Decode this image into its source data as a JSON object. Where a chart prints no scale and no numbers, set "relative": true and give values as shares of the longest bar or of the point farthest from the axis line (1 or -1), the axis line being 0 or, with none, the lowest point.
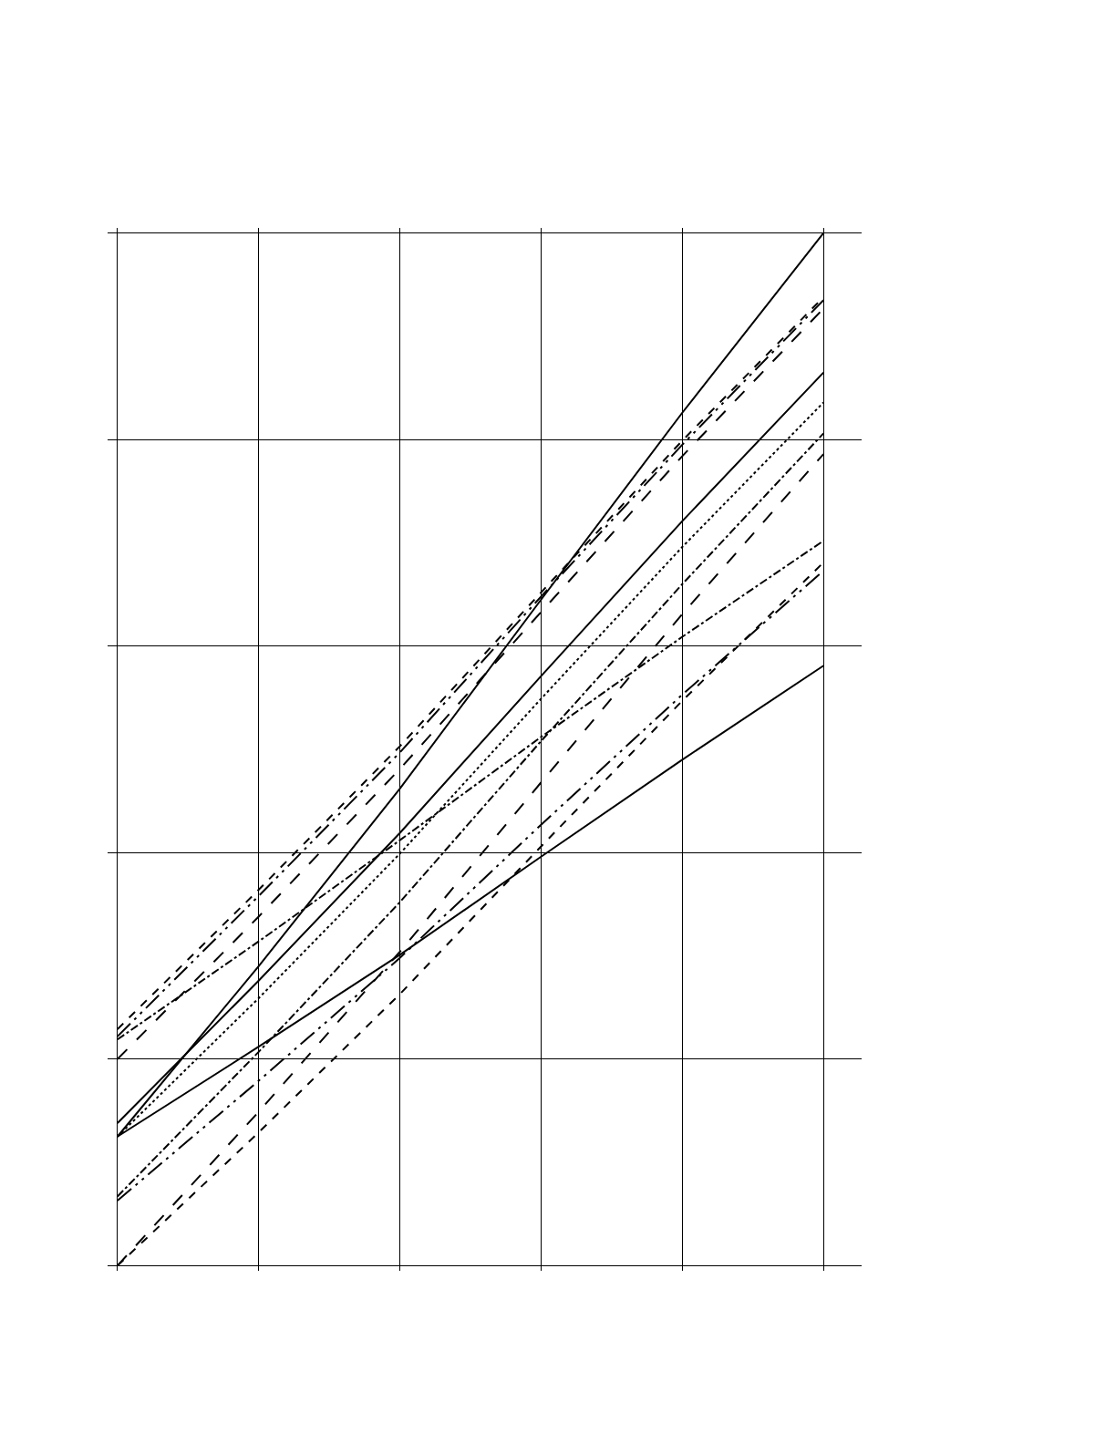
{
  "chart_data": {
    "type": "line",
    "relative": true,
    "categories": [
      null,
      null,
      null,
      null,
      null,
      null
    ],
    "grid": true,
    "marker": "none",
    "series": [
      {
        "color": "#000000",
        "line_style": "solid",
        "values": [
          0.125,
          0.29,
          0.462,
          0.645,
          0.826,
          1.0
        ]
      },
      {
        "color": "#000000",
        "line_style": "solid",
        "values": [
          0.125,
          0.212,
          0.301,
          0.396,
          0.49,
          0.581
        ]
      },
      {
        "color": "#000000",
        "line_style": "dashed",
        "values": [
          0.229,
          0.364,
          0.503,
          0.652,
          0.799,
          0.938
        ]
      },
      {
        "color": "#000000",
        "line_style": "dashdotdot",
        "values": [
          0.222,
          0.358,
          0.497,
          0.648,
          0.795,
          0.935
        ]
      },
      {
        "color": "#000000",
        "line_style": "longdash",
        "values": [
          0.2,
          0.338,
          0.481,
          0.633,
          0.784,
          0.927
        ]
      },
      {
        "color": "#000000",
        "line_style": "longdash",
        "values": [
          0.0,
          0.149,
          0.304,
          0.468,
          0.631,
          0.786
        ]
      },
      {
        "color": "#000000",
        "line_style": "solid",
        "values": [
          0.138,
          0.276,
          0.419,
          0.571,
          0.721,
          0.865
        ]
      },
      {
        "color": "#000000",
        "line_style": "dotted",
        "values": [
          0.125,
          0.259,
          0.399,
          0.549,
          0.696,
          0.836
        ]
      },
      {
        "color": "#000000",
        "line_style": "dashdot",
        "values": [
          0.067,
          0.207,
          0.352,
          0.508,
          0.66,
          0.806
        ]
      },
      {
        "color": "#000000",
        "line_style": "dashdot",
        "values": [
          0.219,
          0.314,
          0.412,
          0.512,
          0.609,
          0.702
        ]
      },
      {
        "color": "#000000",
        "line_style": "dashdotdot",
        "values": [
          0.063,
          0.179,
          0.298,
          0.427,
          0.553,
          0.673
        ]
      },
      {
        "color": "#000000",
        "line_style": "dashed",
        "values": [
          0.0,
          0.129,
          0.263,
          0.406,
          0.547,
          0.681
        ]
      }
    ]
  }
}
